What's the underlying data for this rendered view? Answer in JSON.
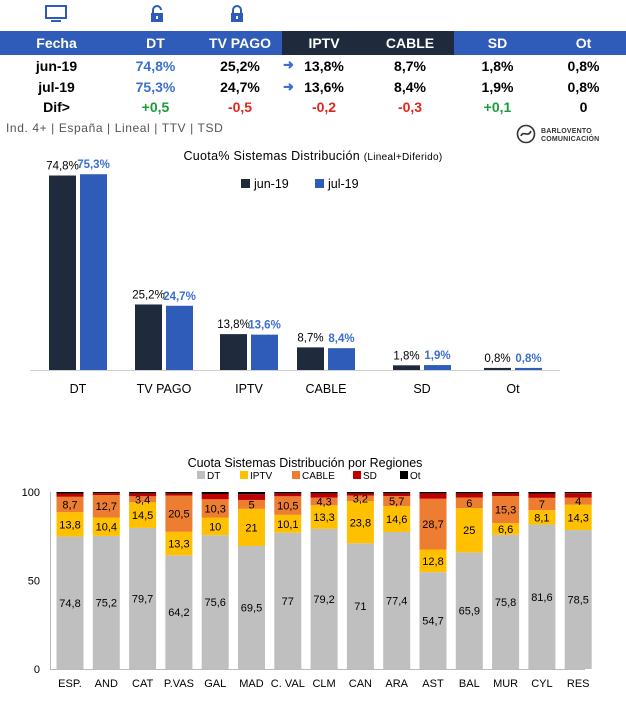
{
  "table": {
    "headers": [
      "Fecha",
      "DT",
      "TV PAGO",
      "IPTV",
      "CABLE",
      "SD",
      "Ot"
    ],
    "rows": [
      {
        "label": "jun-19",
        "dt": "74,8%",
        "tvpago": "25,2%",
        "iptv": "13,8%",
        "cable": "8,7%",
        "sd": "1,8%",
        "ot": "0,8%"
      },
      {
        "label": "jul-19",
        "dt": "75,3%",
        "tvpago": "24,7%",
        "iptv": "13,6%",
        "cable": "8,4%",
        "sd": "1,9%",
        "ot": "0,8%"
      },
      {
        "label": "Dif>",
        "dt": "+0,5",
        "tvpago": "-0,5",
        "iptv": "-0,2",
        "cable": "-0,3",
        "sd": "+0,1",
        "ot": "0"
      }
    ]
  },
  "subtitle": "Ind. 4+ | España | Lineal | TTV | TSD",
  "logo": {
    "line1": "BARLOVENTO",
    "line2": "COMUNICACIÓN"
  },
  "chart_data": [
    {
      "type": "bar",
      "title": "Cuota% Sistemas Distribución",
      "title_note": "(Lineal+Diferido)",
      "categories": [
        "DT",
        "TV PAGO",
        "IPTV",
        "CABLE",
        "SD",
        "Ot"
      ],
      "series": [
        {
          "name": "jun-19",
          "values": [
            74.8,
            25.2,
            13.8,
            8.7,
            1.8,
            0.8
          ],
          "labels": [
            "74,8%",
            "25,2%",
            "13,8%",
            "8,7%",
            "1,8%",
            "0,8%"
          ],
          "color": "#1f2b3d"
        },
        {
          "name": "jul-19",
          "values": [
            75.3,
            24.7,
            13.6,
            8.4,
            1.9,
            0.8
          ],
          "labels": [
            "75,3%",
            "24,7%",
            "13,6%",
            "8,4%",
            "1,9%",
            "0,8%"
          ],
          "color": "#2e5cb8"
        }
      ],
      "ylim": [
        0,
        80
      ],
      "legend": "top-center",
      "grid": false
    },
    {
      "type": "bar",
      "stacked": true,
      "title": "Cuota Sistemas Distribución por  Regiones",
      "categories": [
        "ESP.",
        "AND",
        "CAT",
        "P.VAS",
        "GAL",
        "MAD",
        "C. VAL",
        "CLM",
        "CAN",
        "ARA",
        "AST",
        "BAL",
        "MUR",
        "CYL",
        "RES"
      ],
      "series": [
        {
          "name": "DT",
          "color": "#bfbfbf",
          "values": [
            74.8,
            75.2,
            79.7,
            64.2,
            75.6,
            69.5,
            77,
            79.2,
            71,
            77.4,
            54.7,
            65.9,
            75.8,
            81.6,
            78.5
          ],
          "labels": [
            "74,8",
            "75,2",
            "79,7",
            "64,2",
            "75,6",
            "69,5",
            "77",
            "79,2",
            "71",
            "77,4",
            "54,7",
            "65,9",
            "75,8",
            "81,6",
            "78,5"
          ]
        },
        {
          "name": "IPTV",
          "color": "#ffc000",
          "values": [
            13.8,
            10.4,
            14.5,
            13.3,
            10,
            21,
            10.1,
            13.3,
            23.8,
            14.6,
            12.8,
            25,
            6.6,
            8.1,
            14.3
          ],
          "labels": [
            "13,8",
            "10,4",
            "14,5",
            "13,3",
            "10",
            "21",
            "10,1",
            "13,3",
            "23,8",
            "14,6",
            "12,8",
            "25",
            "6,6",
            "8,1",
            "14,3"
          ]
        },
        {
          "name": "CABLE",
          "color": "#ed7d31",
          "values": [
            8.7,
            12.7,
            3.4,
            20.5,
            10.3,
            5,
            10.5,
            4.3,
            3.2,
            5.7,
            28.7,
            6,
            15.3,
            7,
            4
          ],
          "labels": [
            "8,7",
            "12,7",
            "3,4",
            "20,5",
            "10,3",
            "5",
            "10,5",
            "4,3",
            "3,2",
            "5,7",
            "28,7",
            "6",
            "15,3",
            "7",
            "4"
          ]
        },
        {
          "name": "SD",
          "color": "#c00000",
          "values": [
            1.8,
            1.1,
            1.6,
            1.2,
            3.0,
            3.3,
            1.6,
            2.4,
            1.2,
            1.5,
            3.0,
            2.3,
            1.5,
            2.4,
            2.5
          ],
          "labels": []
        },
        {
          "name": "Ot",
          "color": "#000000",
          "values": [
            0.9,
            0.6,
            0.8,
            0.8,
            1.1,
            1.2,
            0.8,
            0.8,
            0.8,
            0.8,
            0.8,
            0.8,
            0.8,
            0.9,
            0.7
          ],
          "labels": []
        }
      ],
      "yticks": [
        0,
        50,
        100
      ],
      "ylim": [
        0,
        100
      ],
      "legend": "top-center",
      "grid": false
    }
  ]
}
